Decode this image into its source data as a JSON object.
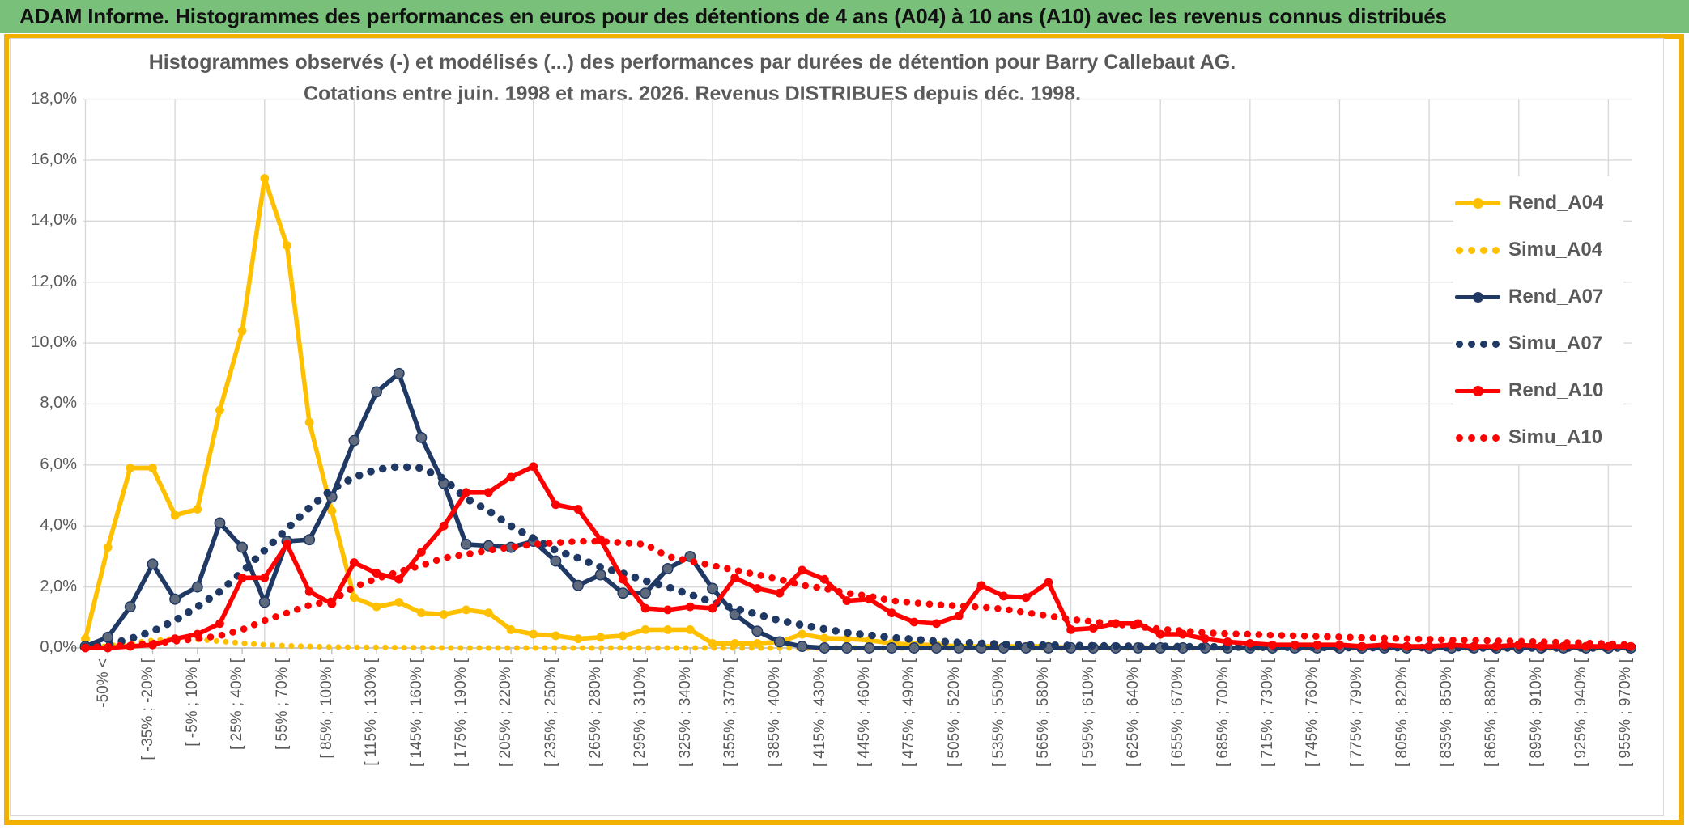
{
  "banner": {
    "title": "ADAM Informe. Histogrammes des performances en euros pour des détentions de 4 ans (A04) à 10 ans (A10) avec les revenus connus distribués"
  },
  "chart": {
    "title_line1": "Histogrammes observés (-) et modélisés (...) des performances par durées de détention pour Barry Callebaut AG.",
    "title_line2": "Cotations entre juin. 1998 et mars. 2026. Revenus DISTRIBUES depuis déc. 1998.",
    "colors": {
      "banner_green": "#79c17b",
      "gold_frame": "#f2b100",
      "axis_text": "#595959",
      "gridline": "#d9d9d9",
      "axis_line": "#bfbfbf",
      "yellow": "#FFC000",
      "navy": "#1F3864",
      "navy_marker_fill": "#5f6a7d",
      "red": "#FF0000"
    }
  },
  "chart_data": {
    "type": "line",
    "title": "Histogrammes observés (-) et modélisés (...) des performances par durées de détention pour Barry Callebaut AG.",
    "subtitle": "Cotations entre juin. 1998 et mars. 2026. Revenus DISTRIBUES depuis déc. 1998.",
    "xlabel": "",
    "ylabel": "",
    "ylim": [
      0,
      18
    ],
    "grid": true,
    "legend_position": "right",
    "y_tick_labels": [
      "18,0%",
      "16,0%",
      "14,0%",
      "12,0%",
      "10,0%",
      "8,0%",
      "6,0%",
      "4,0%",
      "2,0%",
      "0,0%"
    ],
    "categories": [
      "-50% <",
      "[ -35% ; -20% [",
      "[ -5% ; 10% [",
      "[ 25% ; 40% [",
      "[ 55% ; 70% [",
      "[ 85% ; 100% [",
      "[ 115% ; 130% [",
      "[ 145% ; 160% [",
      "[ 175% ; 190% [",
      "[ 205% ; 220% [",
      "[ 235% ; 250% [",
      "[ 265% ; 280% [",
      "[ 295% ; 310% [",
      "[ 325% ; 340% [",
      "[ 355% ; 370% [",
      "[ 385% ; 400% [",
      "[ 415% ; 430% [",
      "[ 445% ; 460% [",
      "[ 475% ; 490% [",
      "[ 505% ; 520% [",
      "[ 535% ; 550% [",
      "[ 565% ; 580% [",
      "[ 595% ; 610% [",
      "[ 625% ; 640% [",
      "[ 655% ; 670% [",
      "[ 685% ; 700% [",
      "[ 715% ; 730% [",
      "[ 745% ; 760% [",
      "[ 775% ; 790% [",
      "[ 805% ; 820% [",
      "[ 835% ; 850% [",
      "[ 865% ; 880% [",
      "[ 895% ; 910% [",
      "[ 925% ; 940% [",
      "[ 955% ; 970% ["
    ],
    "note": "Bins are 15% wide; one data point per bin, axis labels shown every 2nd bin.",
    "label_every_n_points": 2,
    "series": [
      {
        "name": "Rend_A04",
        "color": "#FFC000",
        "style": "solid",
        "marker": true,
        "values": [
          0.3,
          3.3,
          5.9,
          5.9,
          4.35,
          4.55,
          7.8,
          10.4,
          15.4,
          13.2,
          7.4,
          4.5,
          1.65,
          1.35,
          1.5,
          1.15,
          1.1,
          1.25,
          1.15,
          0.6,
          0.45,
          0.4,
          0.3,
          0.35,
          0.4,
          0.6,
          0.6,
          0.6,
          0.15,
          0.15,
          0.15,
          0.2,
          0.45,
          0.32,
          0.3,
          0.25,
          0.15,
          0.1,
          0.1,
          0.05,
          0.05,
          0.05,
          0.05,
          0.05,
          0,
          0,
          0,
          0,
          0,
          0,
          0,
          0,
          0,
          0,
          0,
          0,
          0,
          0,
          0,
          0,
          0,
          0,
          0,
          0,
          0,
          0,
          0,
          0,
          0,
          0
        ]
      },
      {
        "name": "Simu_A04",
        "color": "#FFC000",
        "style": "dotted",
        "marker": false,
        "values": [
          0.02,
          0.06,
          0.15,
          0.25,
          0.3,
          0.28,
          0.22,
          0.16,
          0.1,
          0.07,
          0.05,
          0.03,
          0.02,
          0.02,
          0.01,
          0.01,
          0,
          0,
          0,
          0,
          0,
          0,
          0,
          0,
          0,
          0,
          0,
          0,
          0,
          0,
          0,
          0,
          0,
          0,
          0,
          0,
          0,
          0,
          0,
          0,
          0,
          0,
          0,
          0,
          0,
          0,
          0,
          0,
          0,
          0,
          0,
          0,
          0,
          0,
          0,
          0,
          0,
          0,
          0,
          0,
          0,
          0,
          0,
          0,
          0,
          0,
          0,
          0,
          0,
          0
        ]
      },
      {
        "name": "Rend_A07",
        "color": "#1F3864",
        "style": "solid",
        "marker": true,
        "values": [
          0.05,
          0.35,
          1.35,
          2.75,
          1.6,
          2.0,
          4.1,
          3.3,
          1.5,
          3.5,
          3.55,
          4.95,
          6.8,
          8.4,
          9.0,
          6.9,
          5.4,
          3.4,
          3.35,
          3.3,
          3.5,
          2.85,
          2.05,
          2.4,
          1.8,
          1.8,
          2.6,
          3.0,
          1.95,
          1.1,
          0.55,
          0.2,
          0.05,
          0,
          0,
          0,
          0,
          0,
          0,
          0,
          0,
          0,
          0,
          0,
          0,
          0,
          0,
          0,
          0,
          0,
          0,
          0,
          0,
          0,
          0,
          0,
          0,
          0,
          0,
          0,
          0,
          0,
          0,
          0,
          0,
          0,
          0,
          0,
          0,
          0
        ]
      },
      {
        "name": "Simu_A07",
        "color": "#1F3864",
        "style": "dotted",
        "marker": false,
        "values": [
          0.05,
          0.1,
          0.3,
          0.55,
          0.9,
          1.35,
          1.85,
          2.5,
          3.2,
          3.9,
          4.6,
          5.2,
          5.6,
          5.85,
          5.95,
          5.9,
          5.55,
          4.9,
          4.5,
          4.0,
          3.6,
          3.2,
          2.95,
          2.65,
          2.45,
          2.2,
          2.0,
          1.75,
          1.5,
          1.3,
          1.1,
          0.9,
          0.75,
          0.62,
          0.5,
          0.42,
          0.34,
          0.28,
          0.22,
          0.18,
          0.15,
          0.12,
          0.1,
          0.09,
          0.08,
          0.07,
          0.06,
          0.05,
          0.05,
          0.04,
          0.04,
          0.03,
          0.03,
          0.02,
          0.02,
          0.02,
          0.01,
          0.01,
          0.01,
          0.01,
          0.01,
          0.01,
          0,
          0,
          0,
          0,
          0,
          0,
          0,
          0
        ]
      },
      {
        "name": "Rend_A10",
        "color": "#FF0000",
        "style": "solid",
        "marker": true,
        "values": [
          0,
          0,
          0.05,
          0.1,
          0.3,
          0.45,
          0.8,
          2.3,
          2.3,
          3.4,
          1.85,
          1.45,
          2.8,
          2.45,
          2.25,
          3.15,
          4.0,
          5.1,
          5.1,
          5.6,
          5.95,
          4.7,
          4.55,
          3.55,
          2.25,
          1.3,
          1.25,
          1.35,
          1.3,
          2.3,
          1.95,
          1.8,
          2.55,
          2.25,
          1.55,
          1.6,
          1.15,
          0.85,
          0.8,
          1.05,
          2.05,
          1.7,
          1.65,
          2.15,
          0.6,
          0.65,
          0.8,
          0.8,
          0.45,
          0.45,
          0.3,
          0.2,
          0.15,
          0.1,
          0.1,
          0.1,
          0.1,
          0.05,
          0.1,
          0.05,
          0.05,
          0.1,
          0.05,
          0.05,
          0.1,
          0.05,
          0.05,
          0.05,
          0.05,
          0.05
        ]
      },
      {
        "name": "Simu_A10",
        "color": "#FF0000",
        "style": "dotted",
        "marker": false,
        "values": [
          0.02,
          0.05,
          0.1,
          0.15,
          0.22,
          0.3,
          0.4,
          0.6,
          0.9,
          1.15,
          1.4,
          1.55,
          2.0,
          2.27,
          2.5,
          2.7,
          2.95,
          3.07,
          3.2,
          3.3,
          3.4,
          3.45,
          3.5,
          3.5,
          3.45,
          3.4,
          3.0,
          2.85,
          2.7,
          2.55,
          2.4,
          2.25,
          2.06,
          1.95,
          1.8,
          1.7,
          1.55,
          1.48,
          1.42,
          1.38,
          1.34,
          1.28,
          1.16,
          1.05,
          0.94,
          0.86,
          0.78,
          0.7,
          0.62,
          0.56,
          0.5,
          0.47,
          0.45,
          0.42,
          0.4,
          0.38,
          0.36,
          0.34,
          0.32,
          0.3,
          0.28,
          0.26,
          0.25,
          0.23,
          0.22,
          0.2,
          0.18,
          0.16,
          0.14,
          0.1
        ]
      }
    ]
  }
}
